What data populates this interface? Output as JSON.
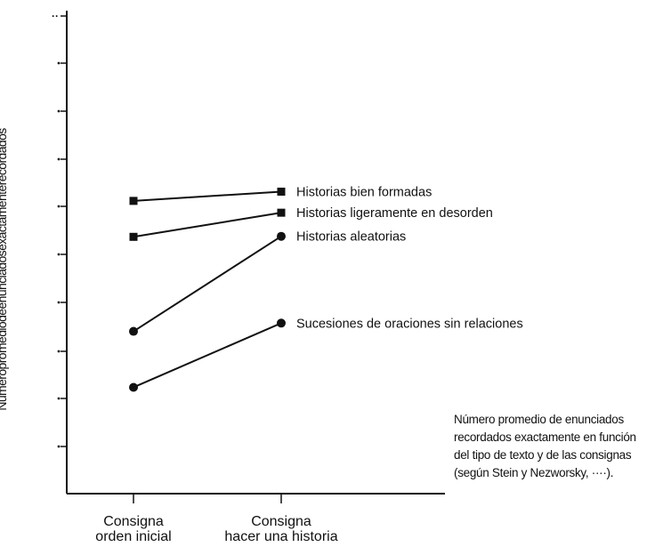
{
  "chart_data": {
    "type": "line",
    "categories": [
      "Consigna\norden inicial",
      "Consigna\nhacer una historia"
    ],
    "series": [
      {
        "name": "Historias bien formadas",
        "marker": "square",
        "values": [
          3.4,
          3.58
        ]
      },
      {
        "name": "Historias ligeramente en desorden",
        "marker": "square",
        "values": [
          2.7,
          3.17
        ]
      },
      {
        "name": "Historias aleatorias",
        "marker": "circle",
        "values": [
          0.86,
          2.71
        ]
      },
      {
        "name": "Sucesiones de oraciones sin relaciones",
        "marker": "circle",
        "values": [
          -0.23,
          1.02
        ]
      }
    ],
    "ylabel": "Númeropromediodeenunciadosexactamenterecordados",
    "y_ticks": [
      "",
      "",
      "",
      "",
      "",
      "",
      "",
      "",
      "",
      ""
    ],
    "y_top_tick": "··",
    "ylim": [
      -2.3,
      7.0
    ],
    "grid": false,
    "legend": "inline labels at line ends",
    "caption": [
      "Número promedio de enunciados",
      "recordados exactamente en función",
      "del tipo de texto y de las consignas",
      "(según Stein y Nezworsky, ····)."
    ],
    "colors": {
      "ink": "#111111"
    }
  }
}
